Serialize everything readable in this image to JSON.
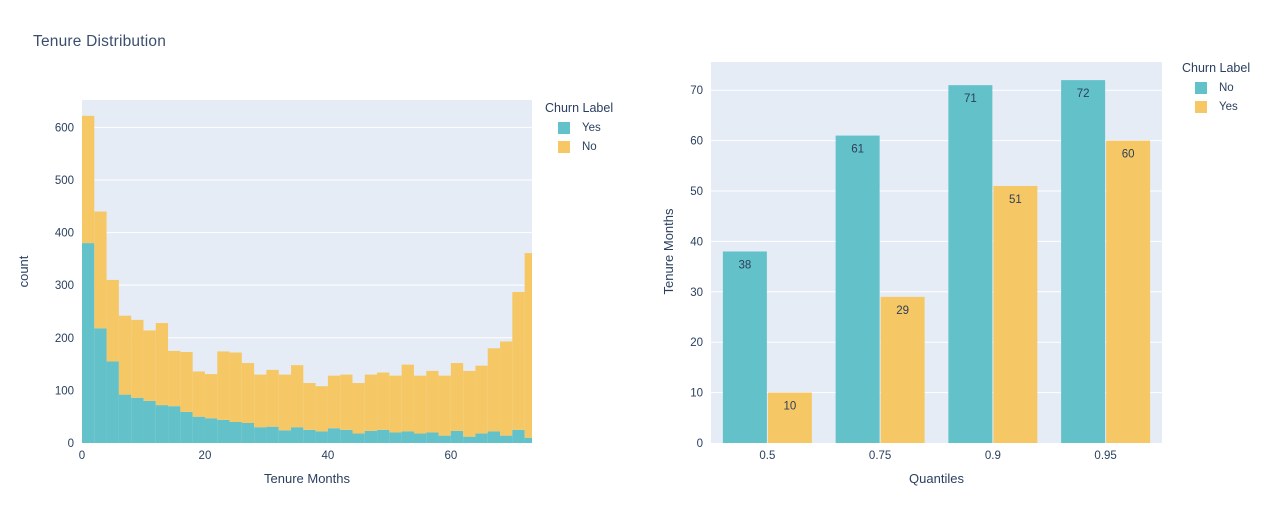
{
  "title": "Tenure Distribution",
  "colors": {
    "teal": "#62c1c9",
    "yellow": "#f6c865",
    "plot_bg": "#e5ecf6",
    "grid": "#ffffff",
    "text": "#2a3f5f"
  },
  "chart_data": [
    {
      "type": "histogram",
      "stacked": true,
      "xlabel": "Tenure Months",
      "ylabel": "count",
      "bin_width": 2,
      "bin_starts": [
        0,
        2,
        4,
        6,
        8,
        10,
        12,
        14,
        16,
        18,
        20,
        22,
        24,
        26,
        28,
        30,
        32,
        34,
        36,
        38,
        40,
        42,
        44,
        46,
        48,
        50,
        52,
        54,
        56,
        58,
        60,
        62,
        64,
        66,
        68,
        70,
        72
      ],
      "series": [
        {
          "name": "Yes",
          "color_key": "teal",
          "values": [
            380,
            218,
            155,
            92,
            86,
            80,
            72,
            70,
            59,
            50,
            47,
            44,
            40,
            38,
            30,
            31,
            24,
            30,
            25,
            22,
            28,
            25,
            18,
            23,
            25,
            20,
            22,
            18,
            20,
            14,
            23,
            12,
            18,
            22,
            14,
            25,
            10
          ]
        },
        {
          "name": "No",
          "color_key": "yellow",
          "values": [
            242,
            222,
            155,
            150,
            148,
            134,
            156,
            105,
            114,
            86,
            84,
            130,
            132,
            114,
            100,
            108,
            106,
            118,
            89,
            86,
            100,
            105,
            96,
            107,
            109,
            108,
            127,
            110,
            117,
            114,
            129,
            125,
            129,
            158,
            179,
            262,
            351
          ]
        }
      ],
      "x_ticks": [
        0,
        20,
        40,
        60
      ],
      "y_ticks": [
        0,
        100,
        200,
        300,
        400,
        500,
        600
      ],
      "xlim": [
        0,
        73.2
      ],
      "ylim": [
        0,
        652
      ],
      "legend": {
        "title": "Churn Label",
        "position": "right-top",
        "items": [
          {
            "label": "Yes",
            "color_key": "teal"
          },
          {
            "label": "No",
            "color_key": "yellow"
          }
        ]
      }
    },
    {
      "type": "bar",
      "grouped": true,
      "xlabel": "Quantiles",
      "ylabel": "Tenure Months",
      "categories": [
        "0.5",
        "0.75",
        "0.9",
        "0.95"
      ],
      "series": [
        {
          "name": "No",
          "color_key": "teal",
          "values": [
            38,
            61,
            71,
            72
          ]
        },
        {
          "name": "Yes",
          "color_key": "yellow",
          "values": [
            10,
            29,
            51,
            60
          ]
        }
      ],
      "bar_labels": true,
      "y_ticks": [
        0,
        10,
        20,
        30,
        40,
        50,
        60,
        70
      ],
      "ylim": [
        0,
        75.6
      ],
      "legend": {
        "title": "Churn Label",
        "position": "right-top",
        "items": [
          {
            "label": "No",
            "color_key": "teal"
          },
          {
            "label": "Yes",
            "color_key": "yellow"
          }
        ]
      }
    }
  ]
}
